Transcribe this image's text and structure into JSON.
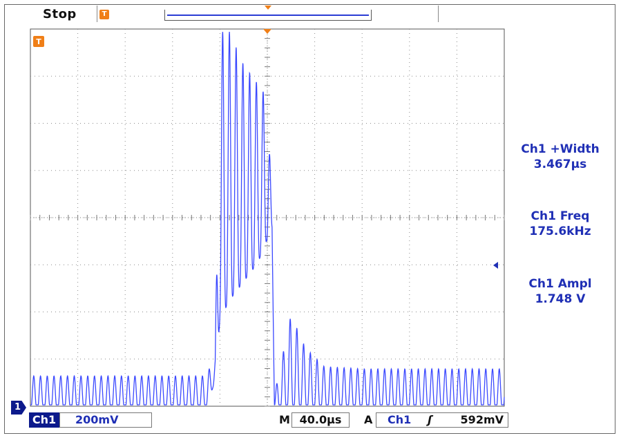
{
  "header": {
    "status": "Stop",
    "trigger_position_marker": "T"
  },
  "measurements": [
    {
      "label": "Ch1 +Width",
      "value": "3.467µs"
    },
    {
      "label": "Ch1 Freq",
      "value": "175.6kHz"
    },
    {
      "label": "Ch1 Ampl",
      "value": "1.748 V"
    }
  ],
  "footer": {
    "channel_marker": "1",
    "channel": "Ch1",
    "volts_per_div": "200mV",
    "timebase_prefix": "M",
    "timebase": "40.0µs",
    "trigger_prefix": "A",
    "trigger_source": "Ch1",
    "trigger_slope": "ʃ",
    "trigger_level": "592mV"
  },
  "colors": {
    "trace": "#3a48ff",
    "accent": "#f07f17",
    "text_blue": "#1f2fb5",
    "channel_badge": "#0c1a8c"
  },
  "chart_data": {
    "type": "line",
    "title": "",
    "xlabel": "",
    "ylabel": "",
    "grid": true,
    "x_divisions": 10,
    "y_divisions": 8,
    "xlim": [
      0,
      10
    ],
    "ylim": [
      0,
      8
    ],
    "x_unit_per_div": "40.0µs",
    "y_unit_per_div": "200mV",
    "carrier_frequency_khz": 175.6,
    "series": [
      {
        "name": "Ch1",
        "envelope": [
          {
            "x": 0.0,
            "low": 0.0,
            "high": 0.7
          },
          {
            "x": 3.7,
            "low": 0.0,
            "high": 0.7
          },
          {
            "x": 3.9,
            "low": 0.6,
            "high": 1.1
          },
          {
            "x": 4.0,
            "low": 1.9,
            "high": 8.0
          },
          {
            "x": 4.2,
            "low": 2.3,
            "high": 8.0
          },
          {
            "x": 4.5,
            "low": 2.7,
            "high": 7.3
          },
          {
            "x": 4.8,
            "low": 3.1,
            "high": 6.9
          },
          {
            "x": 5.0,
            "low": 3.6,
            "high": 6.6
          },
          {
            "x": 5.1,
            "low": 3.8,
            "high": 4.2
          },
          {
            "x": 5.15,
            "low": 0.0,
            "high": 0.3
          },
          {
            "x": 5.5,
            "low": 0.0,
            "high": 2.0
          },
          {
            "x": 5.8,
            "low": 0.0,
            "high": 1.3
          },
          {
            "x": 6.2,
            "low": 0.0,
            "high": 0.9
          },
          {
            "x": 7.0,
            "low": 0.0,
            "high": 0.85
          },
          {
            "x": 10.0,
            "low": 0.0,
            "high": 0.85
          }
        ]
      }
    ]
  }
}
